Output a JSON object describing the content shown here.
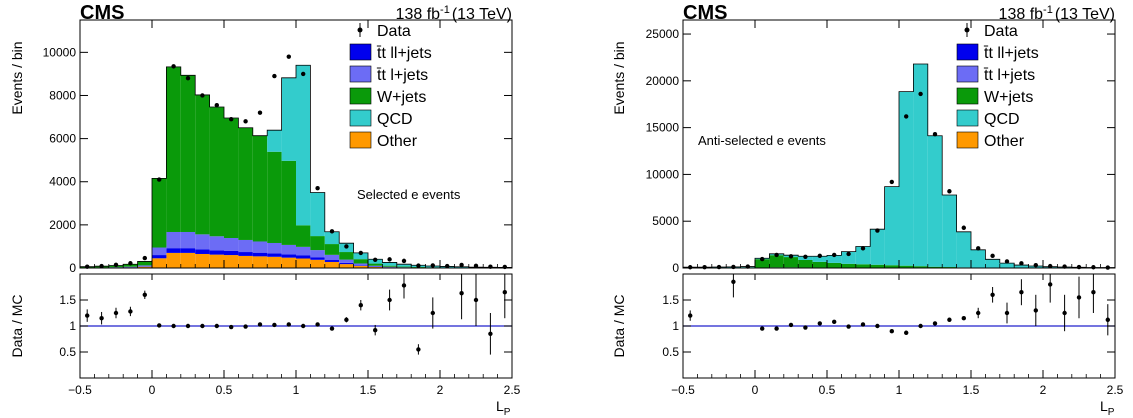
{
  "chart_data": [
    {
      "type": "bar",
      "experiment": "CMS",
      "luminosity": "138 fb",
      "lumi_superscript": "-1",
      "energy": "(13 TeV)",
      "annotation": "Selected e events",
      "xlabel": "L",
      "xlabel_sub": "P",
      "ylabel": "Events / bin",
      "ratio_ylabel": "Data / MC",
      "xlim": [
        -0.5,
        2.5
      ],
      "ylim": [
        0,
        11500
      ],
      "yticks": [
        0,
        2000,
        4000,
        6000,
        8000,
        10000
      ],
      "ytick_labels": [
        "0",
        "2000",
        "4000",
        "6000",
        "8000",
        "10000"
      ],
      "ratio_ylim": [
        0,
        2
      ],
      "ratio_yticks": [
        0.5,
        1,
        1.5
      ],
      "ratio_ytick_labels": [
        "0.5",
        "1",
        "1.5"
      ],
      "xticks": [
        -0.5,
        0,
        0.5,
        1,
        1.5,
        2,
        2.5
      ],
      "xtick_labels": [
        "−0.5",
        "0",
        "0.5",
        "1",
        "1.5",
        "2",
        "2.5"
      ],
      "bin_edges": [
        -0.5,
        -0.4,
        -0.3,
        -0.2,
        -0.1,
        0,
        0.1,
        0.2,
        0.3,
        0.4,
        0.5,
        0.6,
        0.7,
        0.8,
        0.9,
        1.0,
        1.1,
        1.2,
        1.3,
        1.4,
        1.5,
        1.6,
        1.7,
        1.8,
        1.9,
        2.0,
        2.1,
        2.2,
        2.3,
        2.4,
        2.5
      ],
      "legend": [
        {
          "label": "Data",
          "marker": "point"
        },
        {
          "label": "t̄t ll+jets",
          "color": "#0000ee"
        },
        {
          "label": "t̄t l+jets",
          "color": "#6c6cf5"
        },
        {
          "label": "W+jets",
          "color": "#0a9a0a"
        },
        {
          "label": "QCD",
          "color": "#33cccc"
        },
        {
          "label": "Other",
          "color": "#ff9900"
        }
      ],
      "stack": [
        {
          "name": "Other",
          "color": "#ff9900",
          "values": [
            10,
            15,
            20,
            30,
            60,
            450,
            700,
            700,
            650,
            620,
            600,
            560,
            540,
            520,
            480,
            440,
            380,
            280,
            180,
            100,
            50,
            30,
            20,
            15,
            10,
            8,
            6,
            4,
            3,
            2
          ]
        },
        {
          "name": "tt ll+jets",
          "color": "#0000ee",
          "values": [
            2,
            3,
            5,
            10,
            20,
            150,
            220,
            220,
            210,
            200,
            190,
            180,
            170,
            160,
            150,
            140,
            120,
            90,
            60,
            30,
            15,
            8,
            5,
            3,
            2,
            1,
            1,
            1,
            1,
            1
          ]
        },
        {
          "name": "tt l+jets",
          "color": "#6c6cf5",
          "values": [
            5,
            8,
            12,
            20,
            40,
            350,
            750,
            750,
            700,
            650,
            600,
            560,
            520,
            480,
            440,
            400,
            330,
            240,
            150,
            80,
            40,
            20,
            12,
            8,
            5,
            3,
            2,
            2,
            1,
            1
          ]
        },
        {
          "name": "W+jets",
          "color": "#0a9a0a",
          "values": [
            40,
            55,
            75,
            110,
            180,
            3200,
            7650,
            7260,
            6460,
            5990,
            5560,
            5200,
            4900,
            4230,
            3900,
            1000,
            650,
            500,
            350,
            200,
            100,
            50,
            30,
            20,
            15,
            10,
            8,
            5,
            4,
            3
          ]
        },
        {
          "name": "QCD",
          "color": "#33cccc",
          "values": [
            3,
            4,
            5,
            5,
            5,
            5,
            5,
            5,
            5,
            5,
            5,
            5,
            5,
            1000,
            3850,
            7420,
            2020,
            570,
            410,
            290,
            200,
            150,
            110,
            80,
            60,
            50,
            40,
            30,
            25,
            20
          ]
        }
      ],
      "data_points": {
        "x": [
          -0.45,
          -0.35,
          -0.25,
          -0.15,
          -0.05,
          0.05,
          0.15,
          0.25,
          0.35,
          0.45,
          0.55,
          0.65,
          0.75,
          0.85,
          0.95,
          1.05,
          1.15,
          1.25,
          1.35,
          1.45,
          1.55,
          1.65,
          1.75,
          1.85,
          1.95,
          2.05,
          2.15,
          2.25,
          2.35,
          2.45
        ],
        "y": [
          60,
          90,
          150,
          220,
          460,
          4100,
          9350,
          8800,
          8000,
          7550,
          6900,
          6800,
          7200,
          8900,
          9800,
          9000,
          3700,
          1700,
          1000,
          700,
          380,
          400,
          330,
          110,
          120,
          90,
          140,
          100,
          60,
          50
        ]
      },
      "ratio": {
        "x": [
          -0.45,
          -0.35,
          -0.25,
          -0.15,
          -0.05,
          0.05,
          0.15,
          0.25,
          0.35,
          0.45,
          0.55,
          0.65,
          0.75,
          0.85,
          0.95,
          1.05,
          1.15,
          1.25,
          1.35,
          1.45,
          1.55,
          1.65,
          1.75,
          1.85,
          1.95,
          2.05,
          2.15,
          2.25,
          2.35,
          2.45
        ],
        "y": [
          1.2,
          1.15,
          1.25,
          1.28,
          1.6,
          1.01,
          1.0,
          1.0,
          1.0,
          1.0,
          0.98,
          0.99,
          1.03,
          1.02,
          1.03,
          1.0,
          1.03,
          0.95,
          1.12,
          1.4,
          0.92,
          1.5,
          1.78,
          0.55,
          1.25,
          null,
          1.63,
          1.5,
          0.85,
          1.65
        ],
        "err": [
          0.12,
          0.12,
          0.1,
          0.09,
          0.08,
          0.02,
          0.01,
          0.01,
          0.01,
          0.01,
          0.01,
          0.01,
          0.01,
          0.01,
          0.01,
          0.01,
          0.02,
          0.03,
          0.05,
          0.1,
          0.1,
          0.2,
          0.25,
          0.1,
          0.3,
          null,
          0.5,
          0.5,
          0.4,
          0.5
        ]
      }
    },
    {
      "type": "bar",
      "experiment": "CMS",
      "luminosity": "138 fb",
      "lumi_superscript": "-1",
      "energy": "(13 TeV)",
      "annotation": "Anti-selected e events",
      "xlabel": "L",
      "xlabel_sub": "P",
      "ylabel": "Events / bin",
      "ratio_ylabel": "Data / MC",
      "xlim": [
        -0.5,
        2.5
      ],
      "ylim": [
        0,
        26500
      ],
      "yticks": [
        0,
        5000,
        10000,
        15000,
        20000,
        25000
      ],
      "ytick_labels": [
        "0",
        "5000",
        "10000",
        "15000",
        "20000",
        "25000"
      ],
      "ratio_ylim": [
        0,
        2
      ],
      "ratio_yticks": [
        0.5,
        1,
        1.5
      ],
      "ratio_ytick_labels": [
        "0.5",
        "1",
        "1.5"
      ],
      "xticks": [
        -0.5,
        0,
        0.5,
        1,
        1.5,
        2,
        2.5
      ],
      "xtick_labels": [
        "−0.5",
        "0",
        "0.5",
        "1",
        "1.5",
        "2",
        "2.5"
      ],
      "bin_edges": [
        -0.5,
        -0.4,
        -0.3,
        -0.2,
        -0.1,
        0,
        0.1,
        0.2,
        0.3,
        0.4,
        0.5,
        0.6,
        0.7,
        0.8,
        0.9,
        1.0,
        1.1,
        1.2,
        1.3,
        1.4,
        1.5,
        1.6,
        1.7,
        1.8,
        1.9,
        2.0,
        2.1,
        2.2,
        2.3,
        2.4,
        2.5
      ],
      "legend": [
        {
          "label": "Data",
          "marker": "point"
        },
        {
          "label": "t̄t ll+jets",
          "color": "#0000ee"
        },
        {
          "label": "t̄t l+jets",
          "color": "#6c6cf5"
        },
        {
          "label": "W+jets",
          "color": "#0a9a0a"
        },
        {
          "label": "QCD",
          "color": "#33cccc"
        },
        {
          "label": "Other",
          "color": "#ff9900"
        }
      ],
      "stack": [
        {
          "name": "Other",
          "color": "#ff9900",
          "values": [
            2,
            2,
            3,
            3,
            5,
            20,
            30,
            30,
            25,
            25,
            20,
            20,
            20,
            20,
            20,
            20,
            20,
            15,
            10,
            8,
            5,
            4,
            3,
            2,
            2,
            1,
            1,
            1,
            1,
            1
          ]
        },
        {
          "name": "tt ll+jets",
          "color": "#0000ee",
          "values": [
            1,
            1,
            1,
            1,
            2,
            5,
            8,
            8,
            7,
            7,
            6,
            6,
            6,
            6,
            6,
            6,
            5,
            4,
            3,
            2,
            1,
            1,
            1,
            1,
            1,
            1,
            1,
            1,
            1,
            1
          ]
        },
        {
          "name": "tt l+jets",
          "color": "#6c6cf5",
          "values": [
            2,
            2,
            3,
            3,
            5,
            20,
            30,
            30,
            25,
            25,
            20,
            20,
            20,
            20,
            20,
            20,
            20,
            15,
            10,
            8,
            5,
            4,
            3,
            2,
            2,
            1,
            1,
            1,
            1,
            1
          ]
        },
        {
          "name": "W+jets",
          "color": "#0a9a0a",
          "values": [
            20,
            25,
            30,
            40,
            60,
            900,
            1300,
            1100,
            800,
            600,
            500,
            400,
            350,
            300,
            250,
            200,
            150,
            100,
            80,
            50,
            30,
            20,
            15,
            10,
            8,
            6,
            5,
            4,
            3,
            2
          ]
        },
        {
          "name": "QCD",
          "color": "#33cccc",
          "values": [
            60,
            60,
            70,
            70,
            80,
            100,
            150,
            200,
            400,
            600,
            800,
            1300,
            1900,
            3800,
            8400,
            18600,
            21600,
            14000,
            7700,
            3800,
            1900,
            900,
            500,
            300,
            200,
            130,
            100,
            70,
            50,
            40
          ]
        }
      ],
      "data_points": {
        "x": [
          -0.45,
          -0.35,
          -0.25,
          -0.15,
          -0.05,
          0.05,
          0.15,
          0.25,
          0.35,
          0.45,
          0.55,
          0.65,
          0.75,
          0.85,
          0.95,
          1.05,
          1.15,
          1.25,
          1.35,
          1.45,
          1.55,
          1.65,
          1.75,
          1.85,
          1.95,
          2.05,
          2.15,
          2.25,
          2.35,
          2.45
        ],
        "y": [
          80,
          90,
          100,
          110,
          150,
          950,
          1400,
          1250,
          1200,
          1300,
          1400,
          1500,
          2100,
          4000,
          9200,
          16200,
          18600,
          14300,
          8200,
          4300,
          2100,
          1300,
          700,
          500,
          300,
          200,
          150,
          100,
          80,
          50
        ]
      },
      "ratio": {
        "x": [
          -0.45,
          -0.35,
          -0.25,
          -0.15,
          -0.05,
          0.05,
          0.15,
          0.25,
          0.35,
          0.45,
          0.55,
          0.65,
          0.75,
          0.85,
          0.95,
          1.05,
          1.15,
          1.25,
          1.35,
          1.45,
          1.55,
          1.65,
          1.75,
          1.85,
          1.95,
          2.05,
          2.15,
          2.25,
          2.35,
          2.45
        ],
        "y": [
          1.2,
          null,
          null,
          1.85,
          null,
          0.95,
          0.95,
          1.02,
          0.97,
          1.05,
          1.08,
          0.99,
          1.03,
          1.0,
          0.9,
          0.87,
          1.0,
          1.05,
          1.12,
          1.15,
          1.25,
          1.6,
          1.25,
          1.65,
          1.3,
          1.8,
          1.25,
          1.55,
          1.65,
          1.12
        ],
        "err": [
          0.1,
          null,
          null,
          0.3,
          null,
          0.02,
          0.02,
          0.02,
          0.02,
          0.02,
          0.02,
          0.02,
          0.02,
          0.01,
          0.01,
          0.01,
          0.01,
          0.01,
          0.01,
          0.02,
          0.1,
          0.15,
          0.2,
          0.25,
          0.3,
          0.35,
          0.35,
          0.4,
          0.4,
          0.3
        ]
      }
    }
  ]
}
